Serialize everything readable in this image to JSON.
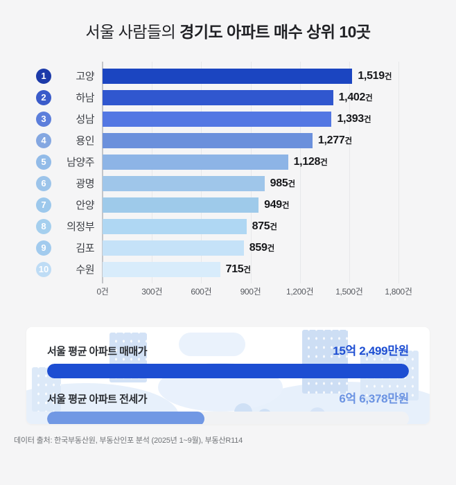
{
  "title": {
    "regular": "서울 사람들의 ",
    "bold": "경기도 아파트 매수 상위 10곳"
  },
  "chart_data": {
    "type": "bar",
    "orientation": "horizontal",
    "unit": "건",
    "categories": [
      "고양",
      "하남",
      "성남",
      "용인",
      "남양주",
      "광명",
      "안양",
      "의정부",
      "김포",
      "수원"
    ],
    "values": [
      1519,
      1402,
      1393,
      1277,
      1128,
      985,
      949,
      875,
      859,
      715
    ],
    "value_labels": [
      "1,519",
      "1,402",
      "1,393",
      "1,277",
      "1,128",
      "985",
      "949",
      "875",
      "859",
      "715"
    ],
    "ranks": [
      "1",
      "2",
      "3",
      "4",
      "5",
      "6",
      "7",
      "8",
      "9",
      "10"
    ],
    "bar_colors": [
      "#1b45c1",
      "#3057cf",
      "#5377e3",
      "#6b90dc",
      "#8db4e6",
      "#9fc6ea",
      "#9ecaea",
      "#afd7f3",
      "#c5e2f8",
      "#d8ecfb"
    ],
    "badge_colors": [
      "#1c3aa9",
      "#3a5bca",
      "#5c7edb",
      "#84a7e1",
      "#92bbe8",
      "#9cc4ea",
      "#9cc8ec",
      "#a5cfee",
      "#a2cbee",
      "#bedcf5"
    ],
    "xlabel": "",
    "ylabel": "",
    "xlim": [
      0,
      1800
    ],
    "x_ticks": [
      "0건",
      "300건",
      "600건",
      "900건",
      "1,200건",
      "1,500건",
      "1,800건"
    ],
    "grid": true,
    "legend": false
  },
  "summary_panel": {
    "rows": [
      {
        "label": "서울 평균 아파트 매매가",
        "value": "15억 2,499만원",
        "color": "#1d4ed2",
        "bar_color": "#1d4ed2",
        "bar_pct": 100
      },
      {
        "label": "서울 평균 아파트 전세가",
        "value": "6억 6,378만원",
        "color": "#6b93e2",
        "bar_color": "#7198e4",
        "bar_pct": 43.5
      }
    ]
  },
  "footer": {
    "source": "데이터 출처: 한국부동산원, 부동산인포 분석 (2025년 1~9월), 부동산R114"
  }
}
